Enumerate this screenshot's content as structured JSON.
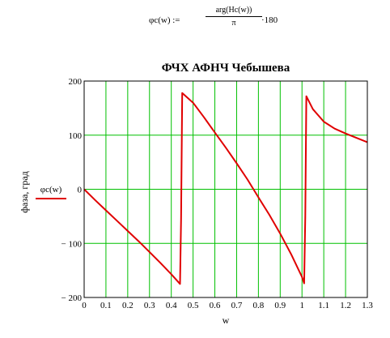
{
  "formula": {
    "lhs": "φc(w) :=",
    "numerator": "arg(Hc(w))",
    "denominator": "π",
    "multiplier": "·180"
  },
  "chart_data": {
    "type": "line",
    "title": "ФЧХ АФНЧ Чебышева",
    "xlabel": "w",
    "ylabel": "фаза, град",
    "xlim": [
      0,
      1.3
    ],
    "ylim": [
      -200,
      200
    ],
    "x_ticks": [
      0,
      0.1,
      0.2,
      0.3,
      0.4,
      0.5,
      0.6,
      0.7,
      0.8,
      0.9,
      1,
      1.1,
      1.2,
      1.3
    ],
    "x_tick_labels": [
      "0",
      "0.1",
      "0.2",
      "0.3",
      "0.4",
      "0.5",
      "0.6",
      "0.7",
      "0.8",
      "0.9",
      "1",
      "1.1",
      "1.2",
      "1.3"
    ],
    "y_ticks": [
      -200,
      -100,
      0,
      100,
      200
    ],
    "y_tick_labels": [
      "− 200",
      "− 100",
      "0",
      "100",
      "200"
    ],
    "grid": true,
    "colors": {
      "line": "#e00000",
      "grid": "#00c000",
      "axis": "#000000"
    },
    "legend": {
      "placement": "left",
      "entries": [
        "φc(w)"
      ]
    },
    "series": [
      {
        "name": "φc(w)",
        "points": [
          [
            0,
            0
          ],
          [
            0.05,
            -20
          ],
          [
            0.1,
            -39
          ],
          [
            0.15,
            -58
          ],
          [
            0.2,
            -77
          ],
          [
            0.25,
            -96
          ],
          [
            0.3,
            -116
          ],
          [
            0.35,
            -136
          ],
          [
            0.4,
            -157
          ],
          [
            0.44,
            -175
          ],
          [
            0.445,
            -55
          ],
          [
            0.45,
            178
          ],
          [
            0.5,
            160
          ],
          [
            0.55,
            133
          ],
          [
            0.6,
            105
          ],
          [
            0.65,
            77
          ],
          [
            0.7,
            48
          ],
          [
            0.75,
            18
          ],
          [
            0.8,
            -15
          ],
          [
            0.85,
            -47
          ],
          [
            0.9,
            -82
          ],
          [
            0.95,
            -120
          ],
          [
            0.98,
            -145
          ],
          [
            1.0,
            -162
          ],
          [
            1.01,
            -174
          ],
          [
            1.015,
            -50
          ],
          [
            1.02,
            172
          ],
          [
            1.05,
            148
          ],
          [
            1.1,
            125
          ],
          [
            1.15,
            112
          ],
          [
            1.2,
            103
          ],
          [
            1.25,
            95
          ],
          [
            1.3,
            87
          ]
        ]
      }
    ]
  }
}
